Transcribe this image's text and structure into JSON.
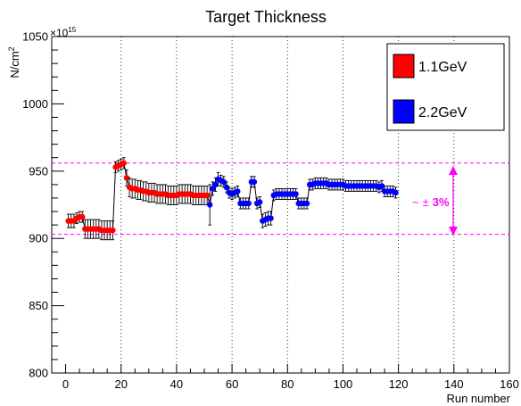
{
  "chart_data": {
    "type": "scatter",
    "title": "Target Thickness",
    "xlabel": "Run number",
    "ylabel": "N/cm",
    "ylabel_sup": "2",
    "y_exponent": "×10",
    "y_exponent_sup": "15",
    "xlim": [
      -5,
      160
    ],
    "ylim": [
      800,
      1050
    ],
    "xticks": [
      "0",
      "20",
      "40",
      "60",
      "80",
      "100",
      "120",
      "140",
      "160"
    ],
    "yticks": [
      "800",
      "850",
      "900",
      "950",
      "1000",
      "1050"
    ],
    "grid": "dotted-vertical",
    "legend_placement": "top-right",
    "colors": {
      "series1": "#ff0000",
      "series2": "#0000ff",
      "annotation": "#ff00ff"
    },
    "series": [
      {
        "name": "1.1GeV",
        "color": "#ff0000",
        "points": [
          [
            1,
            913,
            5
          ],
          [
            2,
            913,
            5
          ],
          [
            3,
            913,
            5
          ],
          [
            4,
            915,
            4
          ],
          [
            5,
            916,
            4
          ],
          [
            6,
            916,
            4
          ],
          [
            7,
            907,
            7
          ],
          [
            8,
            907,
            7
          ],
          [
            9,
            907,
            7
          ],
          [
            10,
            907,
            7
          ],
          [
            11,
            907,
            7
          ],
          [
            12,
            907,
            7
          ],
          [
            13,
            906,
            7
          ],
          [
            14,
            906,
            7
          ],
          [
            15,
            906,
            7
          ],
          [
            16,
            906,
            7
          ],
          [
            17,
            906,
            7
          ],
          [
            18,
            953,
            4
          ],
          [
            19,
            954,
            4
          ],
          [
            20,
            955,
            4
          ],
          [
            21,
            956,
            4
          ],
          [
            22,
            945,
            6
          ],
          [
            23,
            938,
            7
          ],
          [
            24,
            937,
            7
          ],
          [
            25,
            937,
            7
          ],
          [
            26,
            936,
            7
          ],
          [
            27,
            936,
            7
          ],
          [
            28,
            935,
            7
          ],
          [
            29,
            935,
            7
          ],
          [
            30,
            934,
            7
          ],
          [
            31,
            934,
            7
          ],
          [
            32,
            934,
            7
          ],
          [
            33,
            933,
            7
          ],
          [
            34,
            933,
            7
          ],
          [
            35,
            933,
            7
          ],
          [
            36,
            933,
            7
          ],
          [
            37,
            932,
            7
          ],
          [
            38,
            932,
            7
          ],
          [
            39,
            932,
            7
          ],
          [
            40,
            932,
            7
          ],
          [
            41,
            933,
            7
          ],
          [
            42,
            933,
            7
          ],
          [
            43,
            933,
            7
          ],
          [
            44,
            933,
            7
          ],
          [
            45,
            933,
            7
          ],
          [
            46,
            932,
            7
          ],
          [
            47,
            932,
            7
          ],
          [
            48,
            932,
            7
          ],
          [
            49,
            932,
            7
          ],
          [
            50,
            932,
            7
          ],
          [
            51,
            932,
            7
          ]
        ]
      },
      {
        "name": "2.2GeV",
        "color": "#0000ff",
        "points": [
          [
            52,
            925,
            15
          ],
          [
            53,
            937,
            5
          ],
          [
            54,
            940,
            5
          ],
          [
            55,
            944,
            5
          ],
          [
            56,
            943,
            4
          ],
          [
            57,
            942,
            4
          ],
          [
            58,
            938,
            4
          ],
          [
            59,
            934,
            4
          ],
          [
            60,
            933,
            4
          ],
          [
            61,
            934,
            4
          ],
          [
            62,
            935,
            4
          ],
          [
            63,
            926,
            4
          ],
          [
            64,
            926,
            4
          ],
          [
            65,
            926,
            4
          ],
          [
            66,
            926,
            4
          ],
          [
            67,
            942,
            4
          ],
          [
            68,
            942,
            4
          ],
          [
            69,
            926,
            4
          ],
          [
            70,
            927,
            4
          ],
          [
            71,
            913,
            5
          ],
          [
            72,
            914,
            5
          ],
          [
            73,
            915,
            5
          ],
          [
            74,
            915,
            5
          ],
          [
            75,
            932,
            4
          ],
          [
            76,
            933,
            4
          ],
          [
            77,
            933,
            4
          ],
          [
            78,
            933,
            4
          ],
          [
            79,
            933,
            4
          ],
          [
            80,
            933,
            4
          ],
          [
            81,
            933,
            4
          ],
          [
            82,
            933,
            4
          ],
          [
            83,
            933,
            4
          ],
          [
            84,
            926,
            4
          ],
          [
            85,
            926,
            4
          ],
          [
            86,
            926,
            4
          ],
          [
            87,
            926,
            4
          ],
          [
            88,
            940,
            4
          ],
          [
            89,
            940,
            4
          ],
          [
            90,
            941,
            4
          ],
          [
            91,
            941,
            4
          ],
          [
            92,
            941,
            4
          ],
          [
            93,
            941,
            4
          ],
          [
            94,
            941,
            4
          ],
          [
            95,
            940,
            4
          ],
          [
            96,
            940,
            4
          ],
          [
            97,
            940,
            4
          ],
          [
            98,
            940,
            4
          ],
          [
            99,
            940,
            4
          ],
          [
            100,
            940,
            4
          ],
          [
            101,
            939,
            4
          ],
          [
            102,
            939,
            4
          ],
          [
            103,
            939,
            4
          ],
          [
            104,
            939,
            4
          ],
          [
            105,
            939,
            4
          ],
          [
            106,
            939,
            4
          ],
          [
            107,
            939,
            4
          ],
          [
            108,
            939,
            4
          ],
          [
            109,
            939,
            4
          ],
          [
            110,
            939,
            4
          ],
          [
            111,
            939,
            4
          ],
          [
            112,
            939,
            4
          ],
          [
            113,
            938,
            4
          ],
          [
            114,
            939,
            4
          ],
          [
            115,
            935,
            4
          ],
          [
            116,
            935,
            4
          ],
          [
            117,
            935,
            4
          ],
          [
            118,
            935,
            4
          ],
          [
            119,
            934,
            4
          ]
        ]
      }
    ],
    "reference_lines": [
      956,
      903
    ],
    "annotation": {
      "prefix": "~",
      "symbol": "±",
      "value": "3%"
    }
  }
}
